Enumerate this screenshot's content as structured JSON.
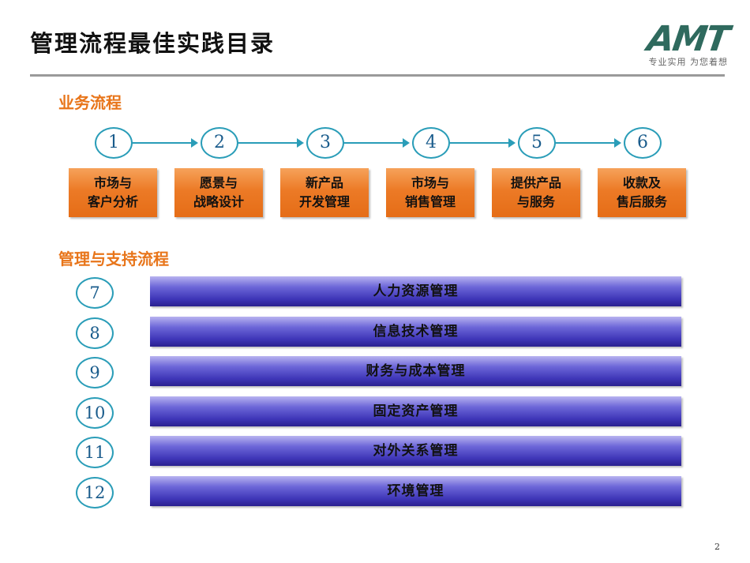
{
  "title": "管理流程最佳实践目录",
  "logo": {
    "mark": "AMT",
    "tagline": "专业实用 为您着想"
  },
  "business": {
    "heading": "业务流程",
    "steps": [
      {
        "num": "1",
        "line1": "市场与",
        "line2": "客户分析"
      },
      {
        "num": "2",
        "line1": "愿景与",
        "line2": "战略设计"
      },
      {
        "num": "3",
        "line1": "新产品",
        "line2": "开发管理"
      },
      {
        "num": "4",
        "line1": "市场与",
        "line2": "销售管理"
      },
      {
        "num": "5",
        "line1": "提供产品",
        "line2": "与服务"
      },
      {
        "num": "6",
        "line1": "收款及",
        "line2": "售后服务"
      }
    ]
  },
  "support": {
    "heading": "管理与支持流程",
    "items": [
      {
        "num": "7",
        "label": "人力资源管理"
      },
      {
        "num": "8",
        "label": "信息技术管理"
      },
      {
        "num": "9",
        "label": "财务与成本管理"
      },
      {
        "num": "10",
        "label": "固定资产管理"
      },
      {
        "num": "11",
        "label": "对外关系管理"
      },
      {
        "num": "12",
        "label": "环境管理"
      }
    ]
  },
  "page_number": "2"
}
